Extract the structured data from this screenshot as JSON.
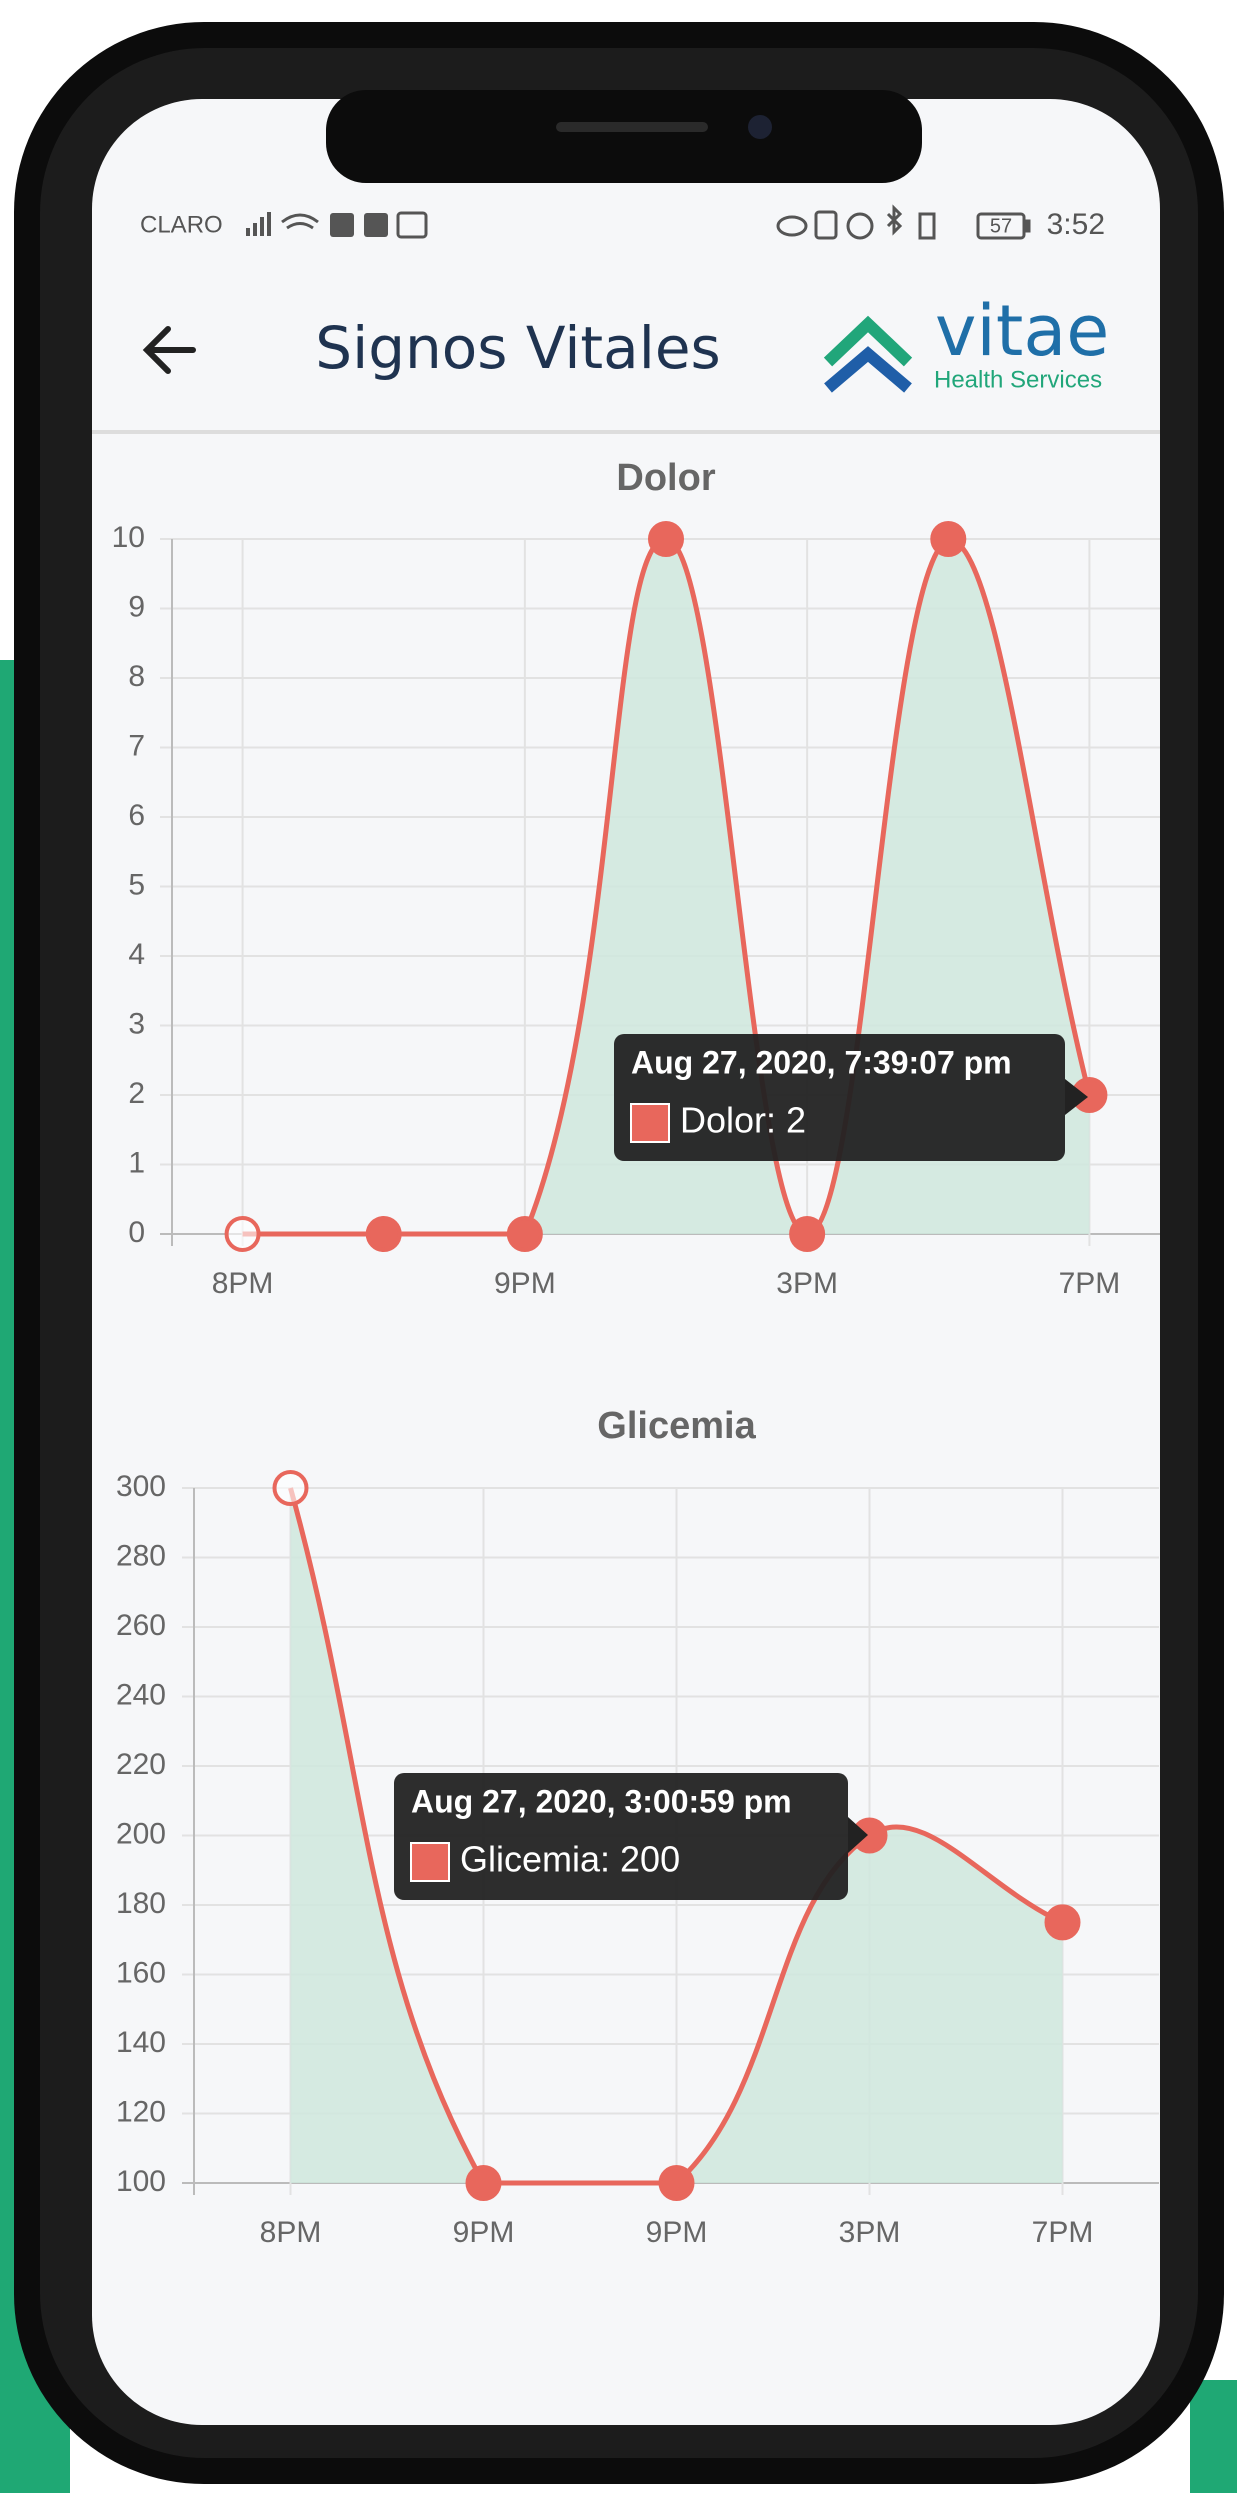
{
  "status_bar": {
    "carrier": "CLARO",
    "battery": "57",
    "time": "3:52"
  },
  "header": {
    "title": "Signos Vitales",
    "logo_name": "vitae",
    "logo_tagline": "Health Services"
  },
  "chart_data": [
    {
      "type": "line",
      "title": "Dolor",
      "categories": [
        "8PM",
        null,
        "9PM",
        null,
        "3PM",
        null,
        "7PM"
      ],
      "values": [
        0,
        0,
        0,
        10,
        0,
        10,
        2
      ],
      "color": "#e8675c",
      "area_color": "#cfe8dd",
      "ylim": [
        0,
        10
      ],
      "yticks": [
        0,
        1,
        2,
        3,
        4,
        5,
        6,
        7,
        8,
        9,
        10
      ],
      "grid": true,
      "tooltip": {
        "title": "Aug 27, 2020, 7:39:07 pm",
        "label": "Dolor: 2"
      }
    },
    {
      "type": "line",
      "title": "Glicemia",
      "categories": [
        "8PM",
        "9PM",
        "9PM",
        "3PM",
        "7PM"
      ],
      "values": [
        300,
        100,
        100,
        200,
        175
      ],
      "color": "#e8675c",
      "area_color": "#cfe8dd",
      "ylim": [
        100,
        300
      ],
      "yticks": [
        100,
        120,
        140,
        160,
        180,
        200,
        220,
        240,
        260,
        280,
        300
      ],
      "grid": true,
      "tooltip": {
        "title": "Aug 27, 2020, 3:00:59 pm",
        "label": "Glicemia: 200"
      }
    }
  ]
}
